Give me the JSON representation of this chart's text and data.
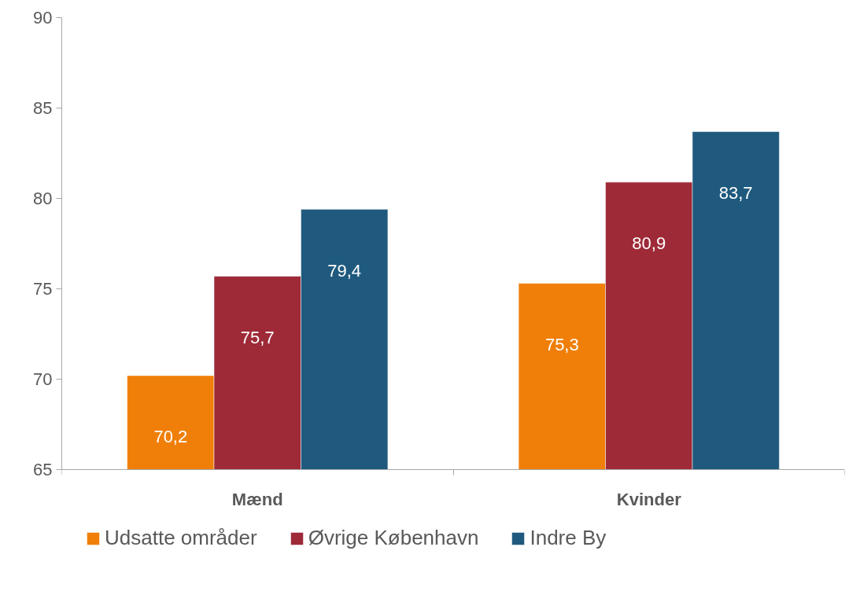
{
  "chart_data": {
    "type": "bar",
    "categories": [
      "Mænd",
      "Kvinder"
    ],
    "series": [
      {
        "name": "Udsatte områder",
        "color": "#f07f09",
        "values": [
          70.2,
          75.3
        ],
        "value_labels": [
          "70,2",
          "75,3"
        ]
      },
      {
        "name": "Øvrige København",
        "color": "#9e2a38",
        "values": [
          75.7,
          80.9
        ],
        "value_labels": [
          "75,7",
          "80,9"
        ]
      },
      {
        "name": "Indre By",
        "color": "#1f5a7e",
        "values": [
          79.4,
          83.7
        ],
        "value_labels": [
          "79,4",
          "83,7"
        ]
      }
    ],
    "ylim": [
      65,
      90
    ],
    "yticks": [
      65,
      70,
      75,
      80,
      85,
      90
    ],
    "grid": false,
    "legend": "bottom"
  }
}
